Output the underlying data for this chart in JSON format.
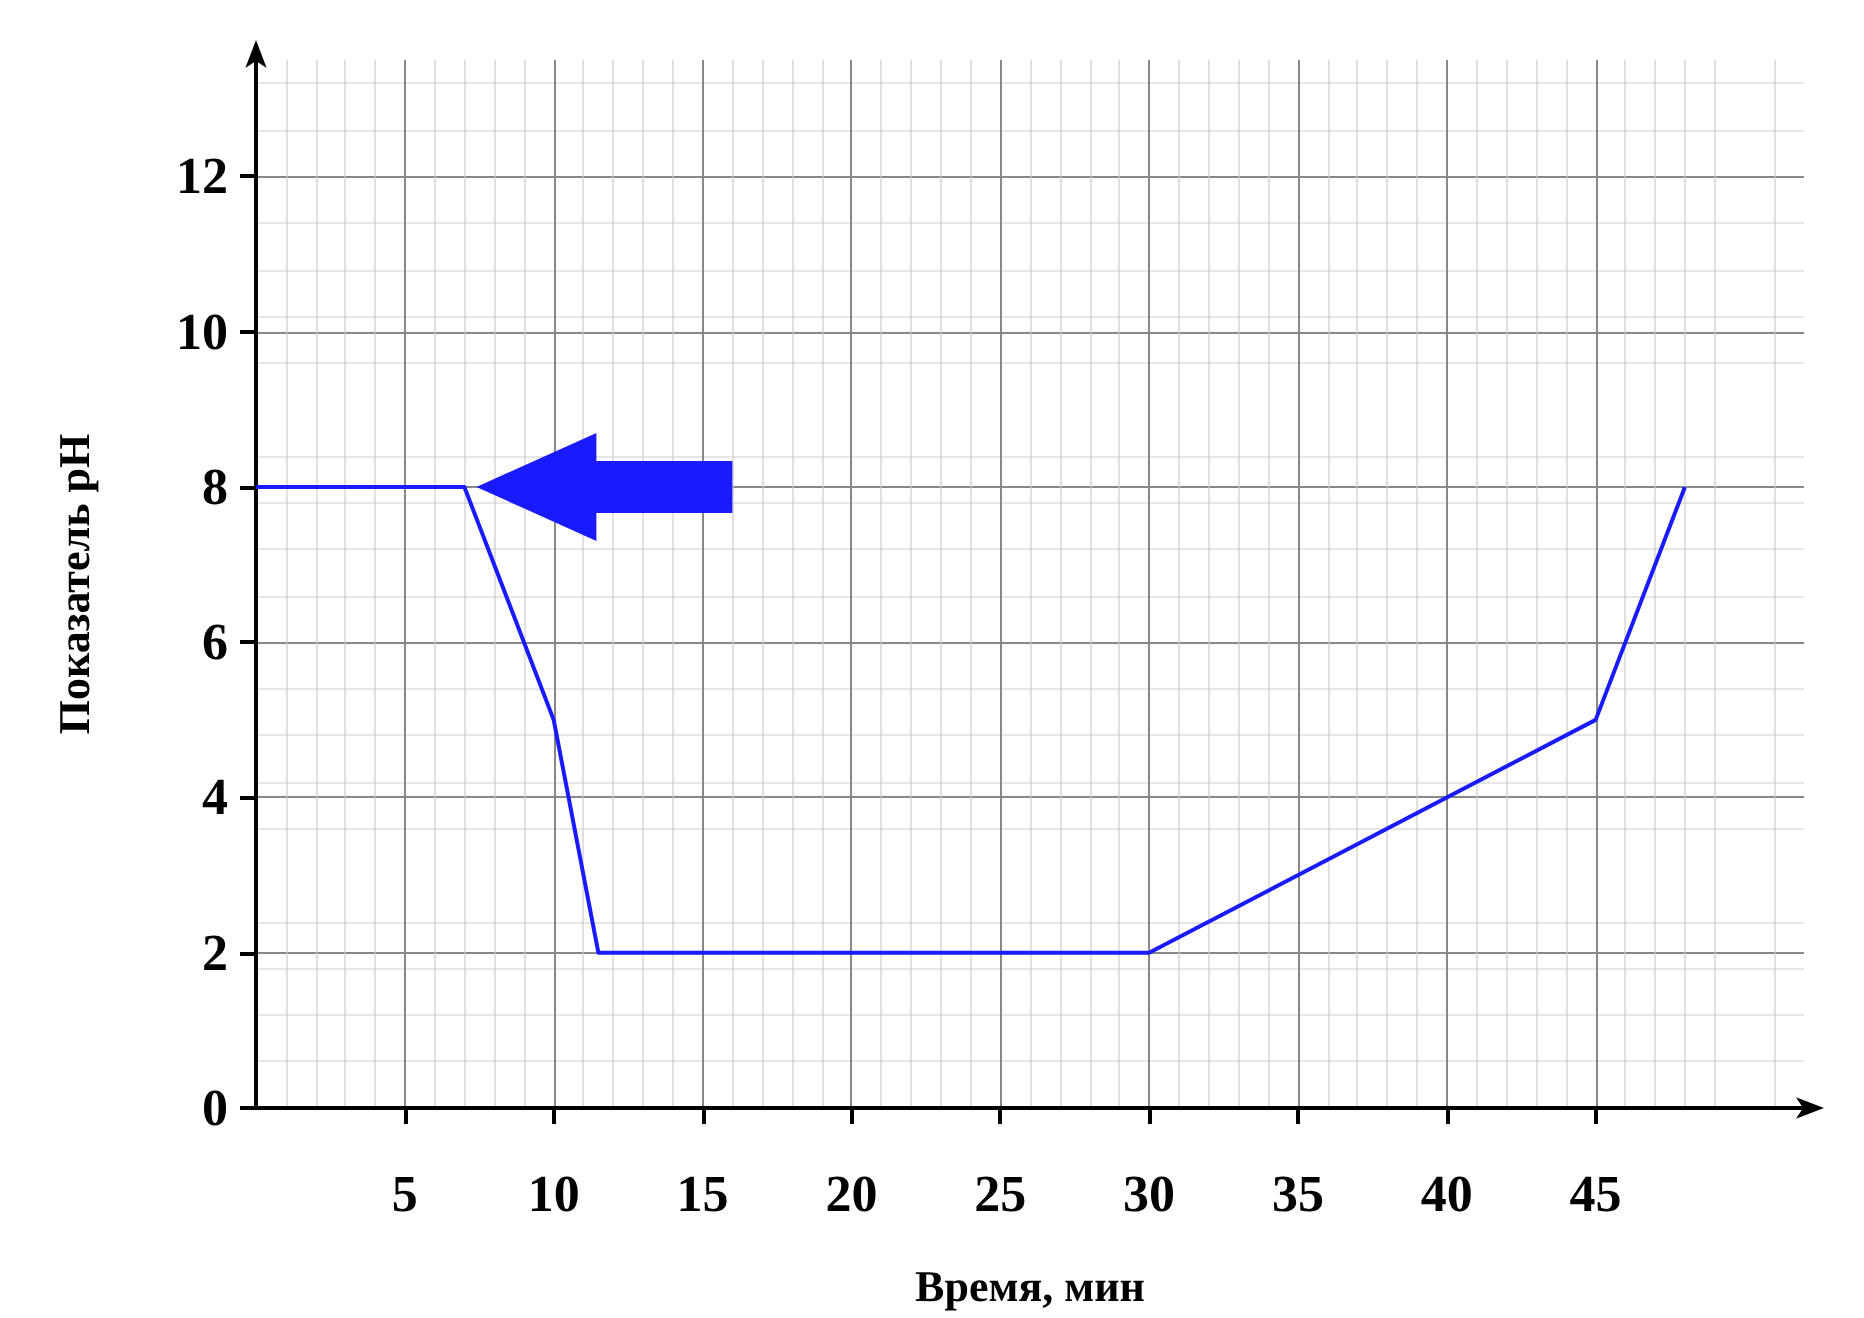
{
  "chart_data": {
    "type": "line",
    "xlabel": "Время, мин",
    "ylabel": "Показатель pH",
    "x": [
      0,
      7,
      10,
      11.5,
      30,
      45,
      48
    ],
    "series": [
      {
        "color": "#1a1aff",
        "values": [
          8,
          8,
          5,
          2,
          2,
          5,
          8
        ]
      }
    ],
    "xlim": [
      0,
      52
    ],
    "xticks": [
      5,
      10,
      15,
      20,
      25,
      30,
      35,
      40,
      45
    ],
    "ylim": [
      0,
      13.5
    ],
    "yticks": [
      0,
      2,
      4,
      6,
      8,
      10,
      12
    ],
    "grid": true,
    "marker": "none",
    "line_style": "solid"
  }
}
